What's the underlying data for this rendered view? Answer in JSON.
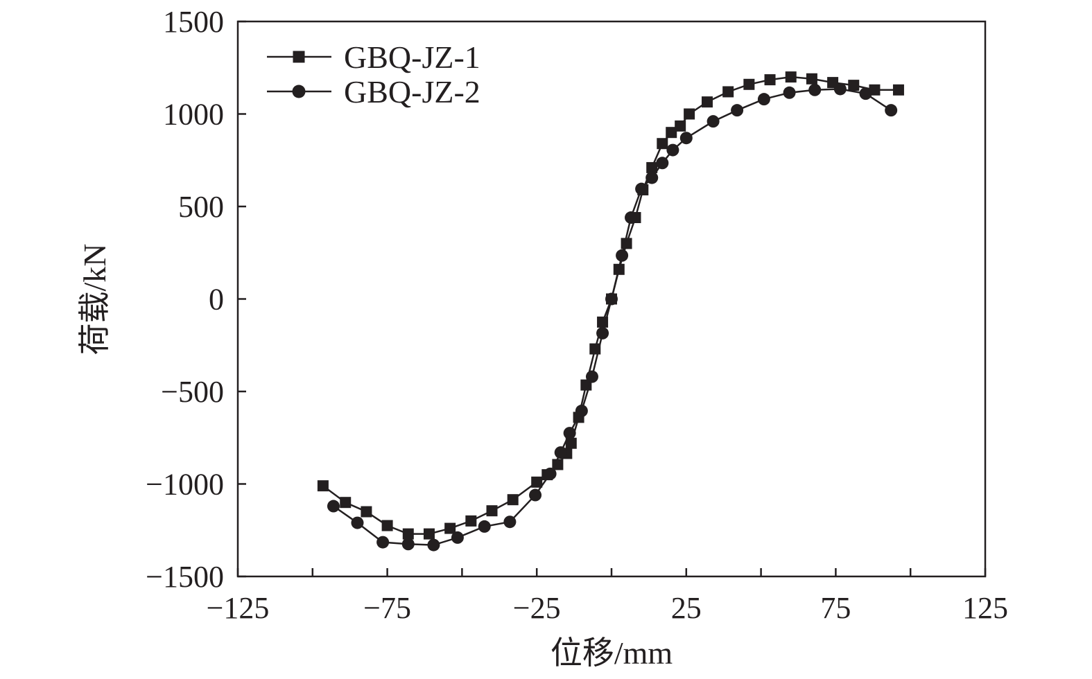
{
  "chart_data": {
    "type": "line",
    "xlabel": "位移/mm",
    "ylabel": "荷载/kN",
    "xlim": [
      -125,
      125
    ],
    "ylim": [
      -1500,
      1500
    ],
    "xticks": [
      -125,
      -75,
      -25,
      25,
      75,
      125
    ],
    "xtick_labels": [
      "−125",
      "−75",
      "−25",
      "25",
      "75",
      "125"
    ],
    "xminor": [
      -100,
      -50,
      0,
      50,
      100
    ],
    "yticks": [
      1500,
      1000,
      500,
      0,
      -500,
      -1000,
      -1500
    ],
    "ytick_labels": [
      "1500",
      "1000",
      "500",
      "0",
      "−500",
      "−1000",
      "−1500"
    ],
    "grid": false,
    "legend_position": "top-left",
    "colors": {
      "series": "#231f20",
      "axis": "#231f20"
    },
    "series": [
      {
        "name": "GBQ-JZ-1",
        "marker": "square",
        "x": [
          -96.5,
          -89,
          -82,
          -75,
          -68,
          -61,
          -54,
          -47,
          -40,
          -33,
          -25,
          -21.5,
          -18,
          -15,
          -13.5,
          -11,
          -8.5,
          -5.5,
          -3,
          0,
          2.5,
          5,
          8,
          10.5,
          13.5,
          17,
          20,
          23,
          26,
          32,
          39,
          46,
          53,
          60,
          67,
          74,
          81,
          88,
          96
        ],
        "y": [
          -1010,
          -1100,
          -1150,
          -1225,
          -1270,
          -1270,
          -1240,
          -1200,
          -1145,
          -1085,
          -990,
          -950,
          -895,
          -835,
          -780,
          -640,
          -465,
          -270,
          -125,
          0,
          160,
          300,
          440,
          590,
          710,
          840,
          900,
          935,
          1000,
          1065,
          1120,
          1160,
          1185,
          1200,
          1190,
          1170,
          1155,
          1130,
          1130
        ]
      },
      {
        "name": "GBQ-JZ-2",
        "marker": "circle",
        "x": [
          -93,
          -85,
          -76.5,
          -68,
          -59.5,
          -51.5,
          -42.5,
          -34,
          -25.5,
          -20.5,
          -17,
          -14,
          -10,
          -6.5,
          -3,
          0,
          3.5,
          6.5,
          10,
          13.5,
          17,
          20.5,
          25,
          34,
          42,
          51,
          59.5,
          68,
          76.5,
          85,
          93.5
        ],
        "y": [
          -1120,
          -1210,
          -1315,
          -1325,
          -1330,
          -1290,
          -1230,
          -1205,
          -1060,
          -945,
          -830,
          -725,
          -605,
          -420,
          -185,
          0,
          235,
          440,
          595,
          655,
          735,
          805,
          870,
          960,
          1020,
          1080,
          1115,
          1130,
          1135,
          1110,
          1020
        ]
      }
    ]
  }
}
